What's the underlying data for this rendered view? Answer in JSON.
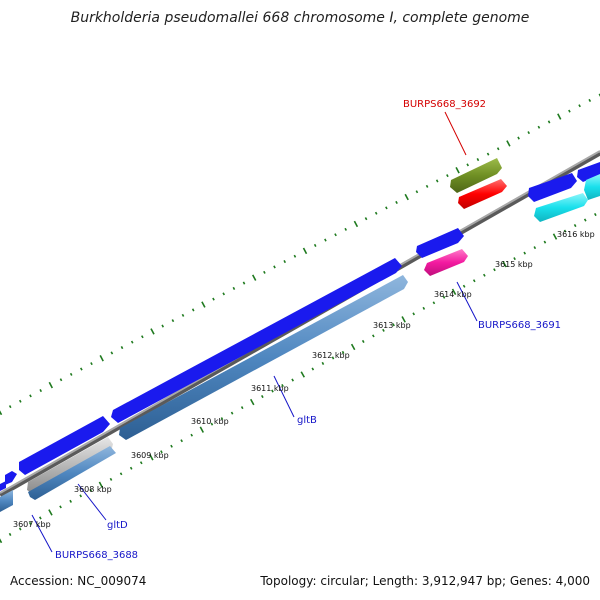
{
  "title": "Burkholderia pseudomallei 668 chromosome I, complete genome",
  "footer": {
    "accession": "Accession: NC_009074",
    "stats": "Topology: circular; Length: 3,912,947 bp; Genes: 4,000"
  },
  "colors": {
    "backbone": "#8c8c8c",
    "tick": "#1f7a1f",
    "gene_blue": "#1a1aee",
    "gene_steel": "#4f87c0",
    "gene_grey": "#b8b8b8",
    "gene_cyan": "#19e0ec",
    "gene_olive": "#6f8f24",
    "gene_red": "#ff0000",
    "gene_pink": "#f31aa0",
    "label_blue": "#1515c8",
    "label_red": "#d40000"
  },
  "scale_labels": [
    "3607 kbp",
    "3608 kbp",
    "3609 kbp",
    "3610 kbp",
    "3611 kbp",
    "3612 kbp",
    "3613 kbp",
    "3614 kbp",
    "3615 kbp",
    "3616 kbp"
  ],
  "gene_labels": [
    "BURPS668_3692",
    "BURPS668_3691",
    "gltB",
    "gltD",
    "BURPS668_3688"
  ]
}
